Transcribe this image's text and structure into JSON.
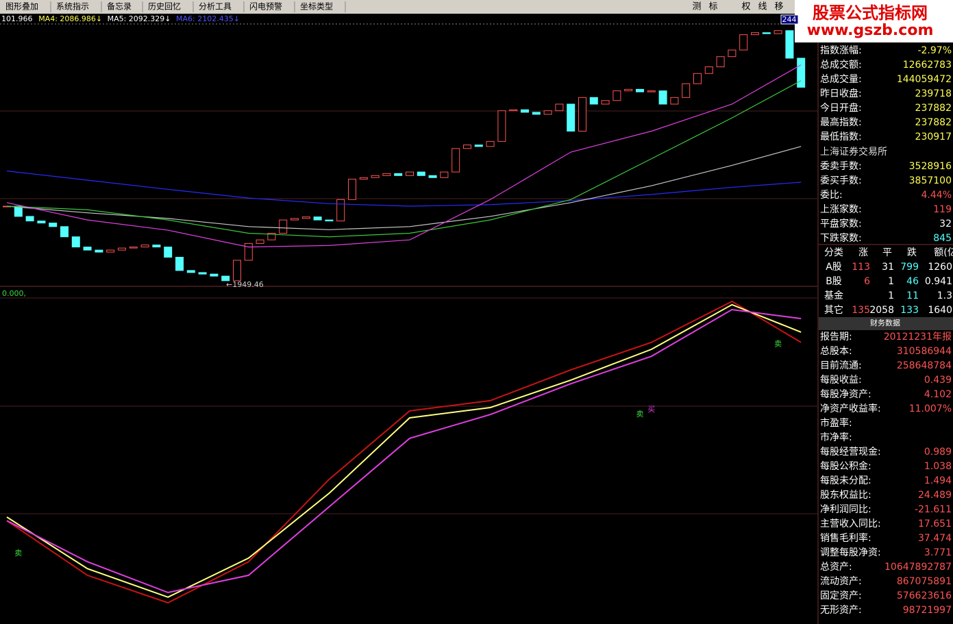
{
  "toolbar": {
    "menus": [
      "图形叠加",
      "系统指示",
      "备忘录",
      "历史回忆",
      "分析工具",
      "闪电预警",
      "坐标类型"
    ],
    "buttons": [
      "测",
      "标",
      "权",
      "线",
      "移"
    ]
  },
  "ma_bar": [
    "101.966",
    "MA4: 2086.986↓",
    "MA5: 2092.329↓",
    "MA6: 2102.435↓"
  ],
  "logo": {
    "title": "股票公式指标网",
    "url": "www.gszb.com"
  },
  "price_chart": {
    "type": "candlestick",
    "ylim": [
      1940,
      2450
    ],
    "corner_value": "244",
    "low_label": "←1949.46",
    "up_color": "#ff5454",
    "down_color": "#54ffff",
    "closes": [
      2097,
      2077,
      2068,
      2064,
      2057,
      2037,
      2017,
      2011,
      2007,
      2011,
      2015,
      2017,
      2021,
      2017,
      1997,
      1971,
      1967,
      1964,
      1960,
      1951,
      1991,
      2024,
      2031,
      2044,
      2070,
      2073,
      2076,
      2070,
      2068,
      2110,
      2150,
      2153,
      2157,
      2161,
      2157,
      2164,
      2157,
      2153,
      2164,
      2210,
      2217,
      2214,
      2224,
      2284,
      2286,
      2281,
      2277,
      2284,
      2297,
      2244,
      2310,
      2297,
      2304,
      2323,
      2326,
      2321,
      2323,
      2297,
      2310,
      2337,
      2357,
      2370,
      2390,
      2403,
      2433,
      2437,
      2435,
      2441,
      2387,
      2330
    ],
    "ma_x": [
      0,
      7,
      14,
      21,
      28,
      35,
      42,
      49,
      56,
      63,
      69
    ],
    "ma_lines": [
      {
        "color": "#2a2aff",
        "values": [
          2166,
          2148,
          2130,
          2113,
          2102,
          2097,
          2100,
          2108,
          2120,
          2134,
          2144
        ]
      },
      {
        "color": "#c8c8c8",
        "values": [
          2097,
          2084,
          2073,
          2057,
          2051,
          2057,
          2077,
          2104,
          2137,
          2177,
          2214
        ]
      },
      {
        "color": "#3cc83c",
        "values": [
          2097,
          2090,
          2070,
          2044,
          2037,
          2044,
          2070,
          2110,
          2190,
          2270,
          2343
        ]
      },
      {
        "color": "#e040e0",
        "values": [
          2104,
          2070,
          2050,
          2017,
          2020,
          2031,
          2110,
          2203,
          2244,
          2297,
          2374
        ]
      }
    ]
  },
  "indicator": {
    "type": "line",
    "label": "0.000,",
    "ylim": [
      0,
      100
    ],
    "x": [
      0,
      7,
      14,
      21,
      28,
      35,
      42,
      49,
      56,
      63,
      69
    ],
    "series": [
      {
        "color": "#c81414",
        "values": [
          30.6,
          14.1,
          5.8,
          18.2,
          43.1,
          63.8,
          66.9,
          76.2,
          84.5,
          96.9,
          84.5
        ]
      },
      {
        "color": "#ffff80",
        "values": [
          31.7,
          16.1,
          7.5,
          19.3,
          38.9,
          61.7,
          64.8,
          73.1,
          82.4,
          95.9,
          87.6
        ]
      },
      {
        "color": "#e040e0",
        "values": [
          30.6,
          18.2,
          8.9,
          14.1,
          34.8,
          55.5,
          62.7,
          72.0,
          80.3,
          94.4,
          91.7
        ]
      }
    ],
    "signals": [
      {
        "text": "卖",
        "color": "#3cdc3c",
        "x": 1,
        "value": 20.7
      },
      {
        "text": "卖",
        "color": "#3cdc3c",
        "x": 55,
        "value": 62.7
      },
      {
        "text": "买",
        "color": "#e040e0",
        "x": 56,
        "value": 64.2
      },
      {
        "text": "卖",
        "color": "#3cdc3c",
        "x": 67,
        "value": 84
      }
    ]
  },
  "quote": {
    "rows": [
      {
        "label": "指数涨幅:",
        "value": "-2.97%",
        "color": "#ffff54"
      },
      {
        "label": "总成交额:",
        "value": "12662783",
        "color": "#ffff54"
      },
      {
        "label": "总成交量:",
        "value": "144059472",
        "color": "#ffff54"
      },
      {
        "label": "昨日收盘:",
        "value": "239718",
        "color": "#ffff54"
      },
      {
        "label": "今日开盘:",
        "value": "237882",
        "color": "#ffff54"
      },
      {
        "label": "最高指数:",
        "value": "237882",
        "color": "#ffff54"
      },
      {
        "label": "最低指数:",
        "value": "230917",
        "color": "#ffff54"
      }
    ],
    "exchange": "上海证券交易所",
    "rows2": [
      {
        "label": "委卖手数:",
        "value": "3528916",
        "color": "#ffff54"
      },
      {
        "label": "委买手数:",
        "value": "3857100",
        "color": "#ffff54"
      },
      {
        "label": "委比:",
        "value": "4.44%",
        "color": "#ff5454"
      },
      {
        "label": "上涨家数:",
        "value": "119",
        "color": "#ff5454"
      },
      {
        "label": "平盘家数:",
        "value": "32",
        "color": "#ffffff"
      },
      {
        "label": "下跌家数:",
        "value": "845",
        "color": "#54ffff"
      }
    ]
  },
  "breadth": {
    "header": [
      "分类",
      "涨",
      "平",
      "跌",
      "额(亿"
    ],
    "rows": [
      [
        "A股",
        113,
        31,
        799,
        1260
      ],
      [
        "B股",
        6,
        1,
        46,
        0.941
      ],
      [
        "基金",
        null,
        1,
        11,
        1.3
      ],
      [
        "其它",
        135,
        2058,
        133,
        1640
      ]
    ]
  },
  "finance": {
    "title": "财务数据",
    "rows": [
      {
        "label": "报告期:",
        "value": "20121231年报"
      },
      {
        "label": "总股本:",
        "value": "310586944"
      },
      {
        "label": "目前流通:",
        "value": "258648784"
      },
      {
        "label": "每股收益:",
        "value": "0.439"
      },
      {
        "label": "每股净资产:",
        "value": "4.102"
      },
      {
        "label": "净资产收益率:",
        "value": "11.007%"
      },
      {
        "label": "市盈率:"
      },
      {
        "label": "市净率:"
      },
      {
        "label": "每股经营现金:",
        "value": "0.989"
      },
      {
        "label": "每股公积金:",
        "value": "1.038"
      },
      {
        "label": "每股未分配:",
        "value": "1.494"
      },
      {
        "label": "股东权益比:",
        "value": "24.489"
      },
      {
        "label": "净利润同比:",
        "value": "-21.611"
      },
      {
        "label": "主营收入同比:",
        "value": "17.651"
      },
      {
        "label": "销售毛利率:",
        "value": "37.474"
      },
      {
        "label": "调整每股净资:",
        "value": "3.771"
      },
      {
        "label": "总资产:",
        "value": "10647892787"
      },
      {
        "label": "流动资产:",
        "value": "867075891"
      },
      {
        "label": "固定资产:",
        "value": "576623616"
      },
      {
        "label": "无形资产:",
        "value": "98721997"
      }
    ]
  }
}
